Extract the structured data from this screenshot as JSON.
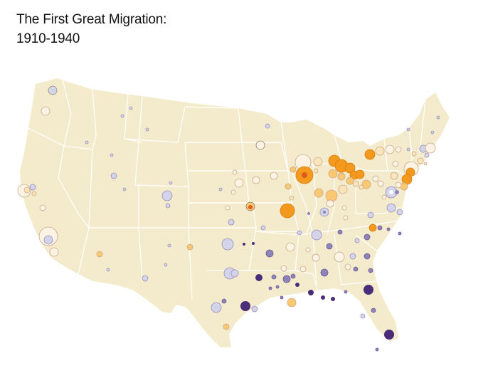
{
  "title": {
    "line1": "The First Great Migration:",
    "line2": "1910-1940"
  },
  "colors": {
    "land": "#f4ebcc",
    "background": "#ffffff",
    "state_border": "#ffffff",
    "strong_gain": "#f39a1e",
    "strong_gain_center": "#e0581a",
    "moderate_gain": "#f9c870",
    "slight_gain": "#fbe3ba",
    "neutral": "#fdf3e4",
    "slight_loss": "#d3d3ea",
    "moderate_loss": "#8f84b8",
    "strong_loss": "#4a2c78"
  }
}
